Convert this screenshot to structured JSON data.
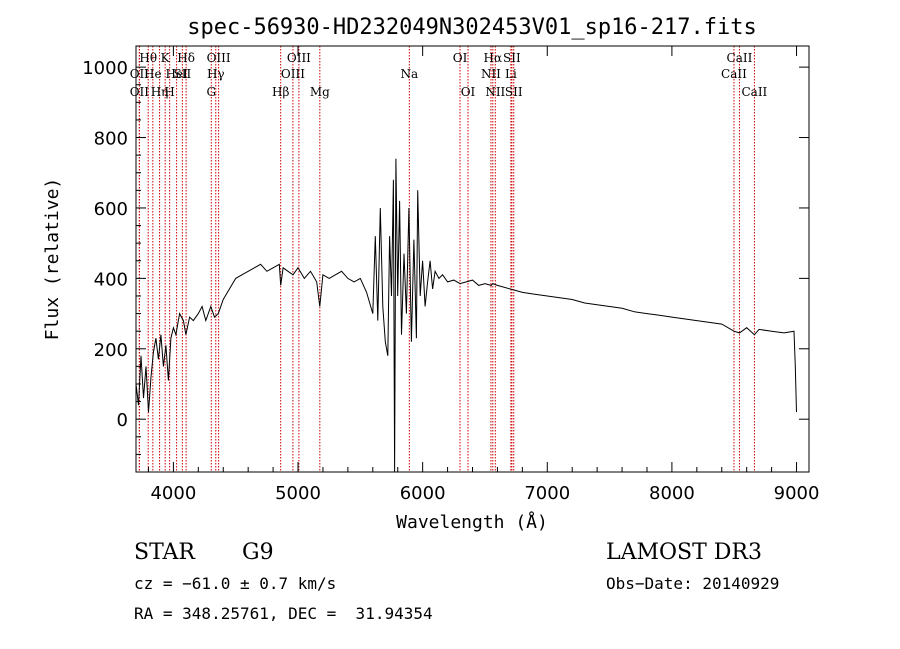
{
  "chart_data": {
    "type": "line",
    "title": "spec-56930-HD232049N302453V01_sp16-217.fits",
    "xlabel": "Wavelength (Å)",
    "ylabel": "Flux (relative)",
    "xlim": [
      3700,
      9100
    ],
    "ylim": [
      -150,
      1060
    ],
    "xticks": [
      4000,
      5000,
      6000,
      7000,
      8000,
      9000
    ],
    "yticks": [
      0,
      200,
      400,
      600,
      800,
      1000
    ],
    "grid": false,
    "series": [
      {
        "color": "#000000",
        "x": [
          3700,
          3720,
          3740,
          3760,
          3780,
          3800,
          3820,
          3840,
          3860,
          3880,
          3900,
          3920,
          3940,
          3960,
          3980,
          4000,
          4020,
          4050,
          4080,
          4100,
          4130,
          4160,
          4200,
          4230,
          4260,
          4300,
          4330,
          4360,
          4400,
          4450,
          4500,
          4550,
          4600,
          4650,
          4700,
          4750,
          4800,
          4850,
          4861,
          4880,
          4920,
          4960,
          5000,
          5050,
          5100,
          5150,
          5175,
          5200,
          5250,
          5300,
          5350,
          5400,
          5450,
          5500,
          5550,
          5600,
          5620,
          5640,
          5660,
          5680,
          5700,
          5720,
          5735,
          5750,
          5765,
          5775,
          5785,
          5800,
          5815,
          5830,
          5850,
          5870,
          5890,
          5910,
          5930,
          5950,
          5960,
          5980,
          6000,
          6020,
          6040,
          6060,
          6080,
          6100,
          6130,
          6160,
          6200,
          6250,
          6300,
          6350,
          6400,
          6450,
          6500,
          6550,
          6563,
          6600,
          6700,
          6800,
          6900,
          7000,
          7100,
          7200,
          7300,
          7400,
          7500,
          7600,
          7700,
          7800,
          7900,
          8000,
          8100,
          8200,
          8300,
          8400,
          8498,
          8542,
          8600,
          8662,
          8700,
          8800,
          8900,
          8980,
          8990,
          9000
        ],
        "y": [
          100,
          40,
          180,
          60,
          150,
          20,
          120,
          190,
          230,
          170,
          240,
          150,
          210,
          110,
          230,
          260,
          240,
          300,
          280,
          240,
          290,
          280,
          300,
          320,
          280,
          320,
          290,
          300,
          340,
          370,
          400,
          410,
          420,
          430,
          440,
          420,
          430,
          440,
          380,
          430,
          420,
          410,
          430,
          400,
          420,
          390,
          320,
          410,
          400,
          410,
          420,
          400,
          390,
          400,
          360,
          300,
          520,
          280,
          600,
          320,
          220,
          180,
          520,
          350,
          680,
          -150,
          740,
          350,
          620,
          240,
          470,
          300,
          600,
          220,
          510,
          230,
          650,
          350,
          450,
          320,
          390,
          450,
          370,
          420,
          400,
          410,
          390,
          395,
          385,
          390,
          395,
          380,
          385,
          380,
          385,
          380,
          370,
          360,
          355,
          350,
          345,
          340,
          330,
          325,
          320,
          315,
          305,
          300,
          295,
          290,
          285,
          280,
          275,
          270,
          250,
          245,
          260,
          240,
          255,
          250,
          245,
          250,
          150,
          20
        ]
      }
    ],
    "line_marker_color": "#cc0000",
    "spectral_lines": [
      {
        "wave": 3727,
        "label": "OII",
        "row": 2
      },
      {
        "wave": 3727,
        "label": "OII",
        "row": 3
      },
      {
        "wave": 3798,
        "label": "Hθ",
        "row": 1
      },
      {
        "wave": 3835,
        "label": "He",
        "row": 2
      },
      {
        "wave": 3889,
        "label": "Hη",
        "row": 3
      },
      {
        "wave": 3934,
        "label": "K",
        "row": 1
      },
      {
        "wave": 3970,
        "label": "H",
        "row": 3
      },
      {
        "wave": 4026,
        "label": "HeI",
        "row": 2
      },
      {
        "wave": 4072,
        "label": "SII",
        "row": 2
      },
      {
        "wave": 4102,
        "label": "Hδ",
        "row": 1
      },
      {
        "wave": 4304,
        "label": "G",
        "row": 3
      },
      {
        "wave": 4340,
        "label": "Hγ",
        "row": 2
      },
      {
        "wave": 4363,
        "label": "OIII",
        "row": 1
      },
      {
        "wave": 4861,
        "label": "Hβ",
        "row": 3
      },
      {
        "wave": 4959,
        "label": "OIII",
        "row": 2
      },
      {
        "wave": 5007,
        "label": "OIII",
        "row": 1
      },
      {
        "wave": 5175,
        "label": "Mg",
        "row": 3
      },
      {
        "wave": 5893,
        "label": "Na",
        "row": 2
      },
      {
        "wave": 6300,
        "label": "OI",
        "row": 1
      },
      {
        "wave": 6364,
        "label": "OI",
        "row": 3
      },
      {
        "wave": 6548,
        "label": "NII",
        "row": 2
      },
      {
        "wave": 6563,
        "label": "Hα",
        "row": 1
      },
      {
        "wave": 6583,
        "label": "NII",
        "row": 3
      },
      {
        "wave": 6708,
        "label": "Li",
        "row": 2
      },
      {
        "wave": 6716,
        "label": "SII",
        "row": 1
      },
      {
        "wave": 6731,
        "label": "SII",
        "row": 3
      },
      {
        "wave": 8498,
        "label": "CaII",
        "row": 2
      },
      {
        "wave": 8542,
        "label": "CaII",
        "row": 1
      },
      {
        "wave": 8662,
        "label": "CaII",
        "row": 3
      }
    ]
  },
  "info": {
    "class": "STAR",
    "subclass": "G9",
    "survey": "LAMOST DR3",
    "cz": "cz = −61.0 ± 0.7 km/s",
    "obs_date": "Obs−Date: 20140929",
    "radec": "RA = 348.25761, DEC =  31.94354"
  }
}
